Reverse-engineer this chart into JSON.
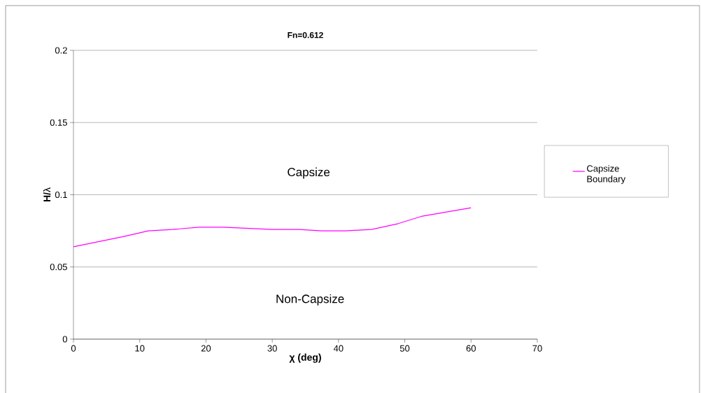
{
  "chart_data": {
    "type": "line",
    "title": "Fn=0.612",
    "xlabel": "χ **(deg)**",
    "ylabel": "**H/**λ",
    "x": [
      0,
      7.5,
      11.3,
      15,
      19,
      22.5,
      30,
      34,
      37.5,
      41,
      45,
      49,
      52.5,
      60
    ],
    "series": [
      {
        "name": "Capsize Boundary",
        "color": "#ff00ff",
        "values": [
          0.064,
          0.071,
          0.075,
          0.076,
          0.0775,
          0.0775,
          0.076,
          0.076,
          0.075,
          0.075,
          0.076,
          0.08,
          0.085,
          0.091
        ]
      }
    ],
    "xlim": [
      0,
      70
    ],
    "ylim": [
      0,
      0.2
    ],
    "xticks": [
      0,
      10,
      20,
      30,
      40,
      50,
      60,
      70
    ],
    "yticks": [
      0,
      0.05,
      0.1,
      0.15,
      0.2
    ],
    "grid": "y",
    "legend": "right",
    "marker": "none",
    "line_style": "solid",
    "annotations": [
      "Capsize",
      "Non-Capsize"
    ]
  }
}
